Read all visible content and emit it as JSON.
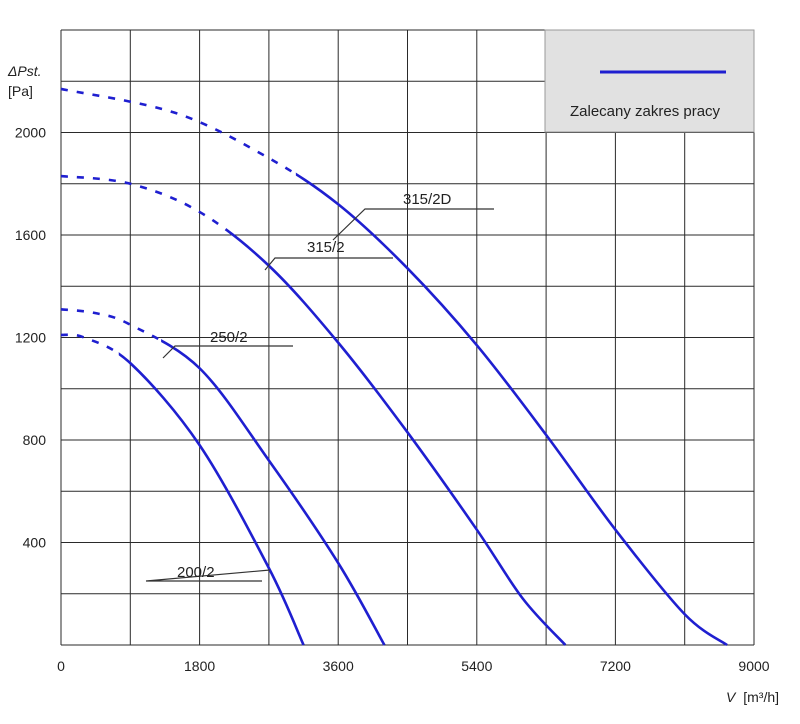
{
  "chart_data": {
    "type": "line",
    "ylabel": "ΔPst.",
    "yunit": "[Pa]",
    "xlabel": "V",
    "xunit": "[m³/h]",
    "xlim": [
      0,
      9000
    ],
    "ylim": [
      0,
      2400
    ],
    "xticks": [
      0,
      1800,
      3600,
      5400,
      7200,
      9000
    ],
    "yticks": [
      400,
      800,
      1200,
      1600,
      2000
    ],
    "xtick_labels": [
      "0",
      "1800",
      "3600",
      "5400",
      "7200",
      "9000"
    ],
    "ytick_labels": [
      "400",
      "800",
      "1200",
      "1600",
      "2000"
    ],
    "grid": true,
    "legend": {
      "label": "Zalecany zakres pracy",
      "position": "top-right"
    },
    "line_color": "#1f1fd0",
    "series": [
      {
        "name": "315/2D",
        "dashed_until": 3050,
        "points": [
          [
            0,
            2170
          ],
          [
            1500,
            2075
          ],
          [
            2700,
            1900
          ],
          [
            3600,
            1720
          ],
          [
            4500,
            1470
          ],
          [
            5400,
            1170
          ],
          [
            6300,
            820
          ],
          [
            7200,
            450
          ],
          [
            8100,
            120
          ],
          [
            8650,
            0
          ]
        ]
      },
      {
        "name": "315/2",
        "dashed_until": 2150,
        "points": [
          [
            0,
            1830
          ],
          [
            900,
            1800
          ],
          [
            1800,
            1690
          ],
          [
            2700,
            1480
          ],
          [
            3600,
            1180
          ],
          [
            4500,
            830
          ],
          [
            5400,
            450
          ],
          [
            6000,
            180
          ],
          [
            6550,
            0
          ]
        ]
      },
      {
        "name": "250/2",
        "dashed_until": 1300,
        "points": [
          [
            0,
            1310
          ],
          [
            450,
            1295
          ],
          [
            900,
            1250
          ],
          [
            1800,
            1080
          ],
          [
            2700,
            720
          ],
          [
            3600,
            320
          ],
          [
            4200,
            0
          ]
        ]
      },
      {
        "name": "200/2",
        "dashed_until": 750,
        "points": [
          [
            0,
            1210
          ],
          [
            300,
            1200
          ],
          [
            900,
            1100
          ],
          [
            1800,
            780
          ],
          [
            2700,
            300
          ],
          [
            3150,
            0
          ]
        ]
      }
    ],
    "curve_labels": [
      "315/2D",
      "315/2",
      "250/2",
      "200/2"
    ]
  }
}
